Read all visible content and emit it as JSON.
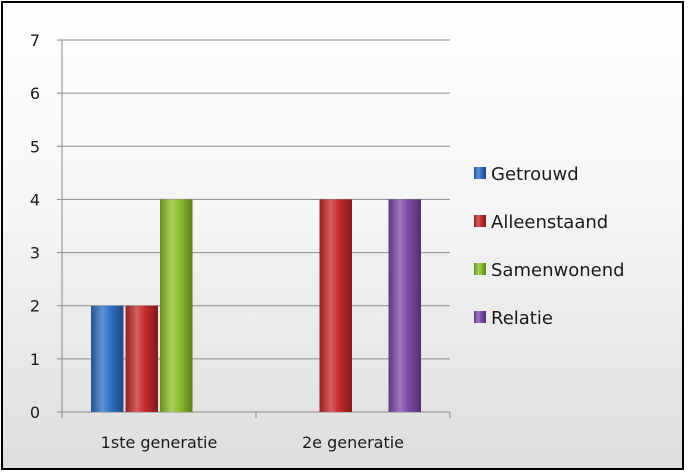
{
  "chart_data": {
    "type": "bar",
    "categories": [
      "1ste generatie",
      "2e generatie"
    ],
    "series": [
      {
        "name": "Getrouwd",
        "values": [
          2,
          0
        ],
        "color": "#2f6fc4"
      },
      {
        "name": "Alleenstaand",
        "values": [
          2,
          4
        ],
        "color": "#c62a2a"
      },
      {
        "name": "Samenwonend",
        "values": [
          4,
          0
        ],
        "color": "#8cbf2c"
      },
      {
        "name": "Relatie",
        "values": [
          0,
          4
        ],
        "color": "#7c4aa8"
      }
    ],
    "ylim": [
      0,
      7
    ],
    "yticks": [
      0,
      1,
      2,
      3,
      4,
      5,
      6,
      7
    ],
    "grid": true,
    "legend": "right",
    "title": "",
    "xlabel": "",
    "ylabel": ""
  }
}
